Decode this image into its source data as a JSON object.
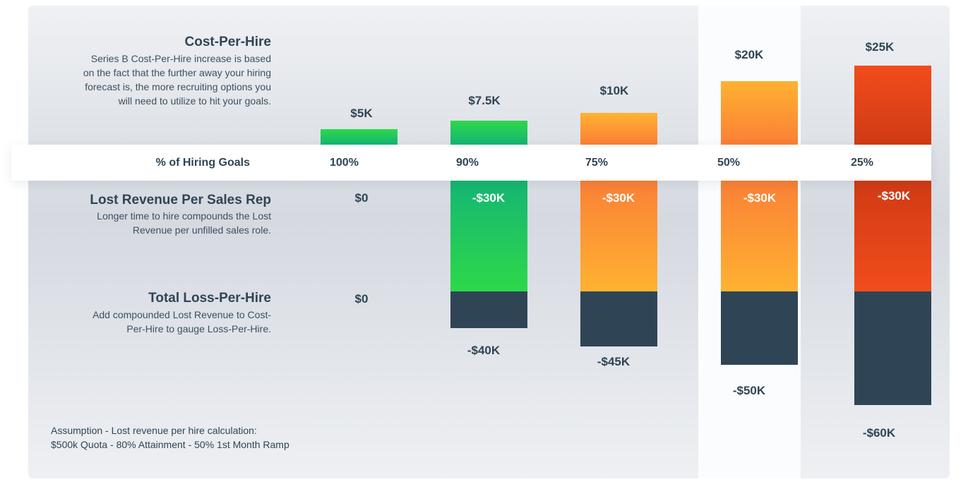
{
  "chart_data": {
    "type": "bar",
    "categories": [
      "100%",
      "90%",
      "75%",
      "50%",
      "25%"
    ],
    "category_axis_label": "% of Hiring Goals",
    "sections": [
      {
        "title": "Cost-Per-Hire",
        "description": "Series B Cost-Per-Hire increase is based on the fact that the further away your hiring forecast is, the more recruiting options you will need to utilize to hit your goals.",
        "values": [
          5,
          7.5,
          10,
          20,
          25
        ],
        "labels": [
          "$5K",
          "$7.5K",
          "$10K",
          "$20K",
          "$25K"
        ]
      },
      {
        "title": "Lost Revenue Per Sales Rep",
        "description": "Longer time to hire compounds the Lost Revenue per unfilled sales role.",
        "values": [
          0,
          -30,
          -30,
          -30,
          -30
        ],
        "labels": [
          "$0",
          "-$30K",
          "-$30K",
          "-$30K",
          "-$30K"
        ]
      },
      {
        "title": "Total Loss-Per-Hire",
        "description": "Add compounded Lost Revenue to Cost-Per-Hire to gauge Loss-Per-Hire.",
        "values": [
          0,
          -40,
          -45,
          -50,
          -60
        ],
        "labels": [
          "$0",
          "-$40K",
          "-$45K",
          "-$50K",
          "-$60K"
        ]
      }
    ],
    "colors": {
      "green": [
        "#2ed84a",
        "#14b574"
      ],
      "orange": [
        "#ffb232",
        "#fa7f36"
      ],
      "red": [
        "#f24c1c",
        "#cf3a14"
      ],
      "total": "#2f4555"
    },
    "column_colors": [
      "green",
      "green",
      "orange",
      "orange",
      "red"
    ]
  },
  "footnote": {
    "line1": "Assumption - Lost revenue per hire calculation:",
    "line2": "$500k Quota - 80% Attainment - 50% 1st Month Ramp"
  }
}
